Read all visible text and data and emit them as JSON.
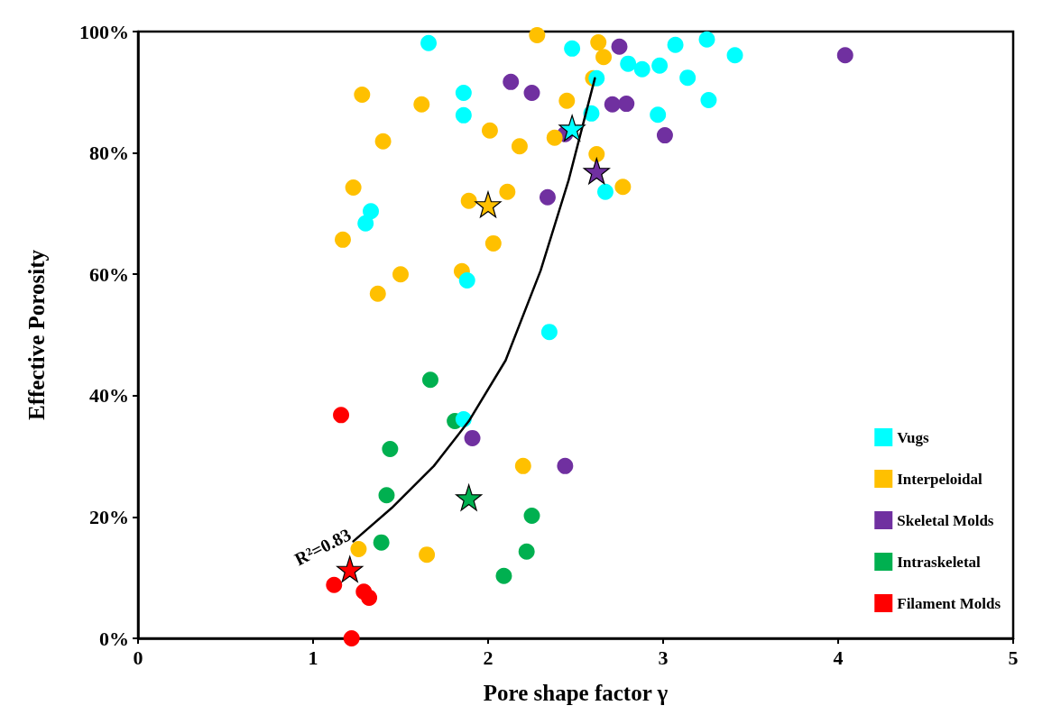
{
  "chart_data": {
    "type": "scatter",
    "xlabel": "Pore shape factor γ",
    "ylabel": "Effective Porosity",
    "xlim": [
      0,
      5
    ],
    "xticks": [
      0,
      1,
      2,
      3,
      4,
      5
    ],
    "ylim": [
      0,
      100
    ],
    "yticks": [
      {
        "value": 0,
        "label": "0%"
      },
      {
        "value": 20,
        "label": "20%"
      },
      {
        "value": 40,
        "label": "40%"
      },
      {
        "value": 60,
        "label": "60%"
      },
      {
        "value": 80,
        "label": "80%"
      },
      {
        "value": 100,
        "label": "100%"
      }
    ],
    "grid": false,
    "legend": "bottom right",
    "marker": "circle",
    "annotations": [
      "R²=0.83"
    ],
    "series": [
      {
        "name": "Vugs",
        "color": "#00ffff",
        "x": [
          1.66,
          2.48,
          3.25,
          3.07,
          3.41,
          2.8,
          2.88,
          2.98,
          3.14,
          2.62,
          3.26,
          1.86,
          1.86,
          2.59,
          2.97,
          2.67,
          1.33,
          1.3,
          1.88,
          2.35,
          1.86
        ],
        "values": [
          98.1,
          97.2,
          98.7,
          97.8,
          96.1,
          94.7,
          93.8,
          94.4,
          92.4,
          92.3,
          88.7,
          89.9,
          86.2,
          86.5,
          86.3,
          73.6,
          70.4,
          68.4,
          59.0,
          50.5,
          36.1
        ]
      },
      {
        "name": "Interpeloidal",
        "color": "#ffc000",
        "x": [
          2.28,
          2.63,
          2.66,
          2.6,
          1.28,
          1.62,
          2.45,
          2.01,
          1.4,
          2.18,
          2.38,
          2.62,
          1.23,
          2.11,
          1.89,
          2.77,
          1.17,
          2.03,
          1.5,
          1.85,
          1.37,
          2.2,
          1.26,
          1.65
        ],
        "values": [
          99.4,
          98.2,
          95.8,
          92.3,
          89.6,
          88.0,
          88.6,
          83.7,
          81.9,
          81.1,
          82.5,
          79.8,
          74.3,
          73.6,
          72.1,
          74.4,
          65.7,
          65.1,
          60.0,
          60.5,
          56.8,
          28.4,
          14.7,
          13.8
        ]
      },
      {
        "name": "Skeletal Molds",
        "color": "#7030a0",
        "x": [
          4.04,
          2.75,
          2.13,
          2.25,
          2.71,
          2.79,
          3.01,
          2.44,
          2.34,
          1.91,
          2.44
        ],
        "values": [
          96.1,
          97.5,
          91.7,
          89.9,
          88.0,
          88.1,
          82.9,
          83.1,
          72.7,
          33.0,
          28.4
        ]
      },
      {
        "name": "Intraskeletal",
        "color": "#00b050",
        "x": [
          1.67,
          1.81,
          1.44,
          1.42,
          2.25,
          2.22,
          2.09,
          1.39
        ],
        "values": [
          42.6,
          35.8,
          31.2,
          23.6,
          20.2,
          14.3,
          10.3,
          15.8
        ]
      },
      {
        "name": "Filament Molds",
        "color": "#ff0000",
        "x": [
          1.16,
          1.12,
          1.29,
          1.32,
          1.22
        ],
        "values": [
          36.8,
          8.8,
          7.7,
          6.7,
          0
        ]
      },
      {
        "type": "line",
        "color": "#000000",
        "marker": "none",
        "line_style": "solid",
        "x": [
          1.23,
          1.45,
          1.69,
          1.89,
          2.1,
          2.3,
          2.46,
          2.61
        ],
        "values": [
          16.0,
          21.5,
          28.4,
          35.8,
          45.8,
          60.6,
          75.5,
          92.3
        ]
      },
      {
        "marker": "star",
        "colors": [
          "#00ffff",
          "#ffc000",
          "#7030a0",
          "#00b050",
          "#ff0000"
        ],
        "x": [
          2.48,
          2.0,
          2.62,
          1.89,
          1.21
        ],
        "values": [
          84.1,
          71.5,
          77.0,
          23.2,
          11.4
        ]
      }
    ]
  }
}
